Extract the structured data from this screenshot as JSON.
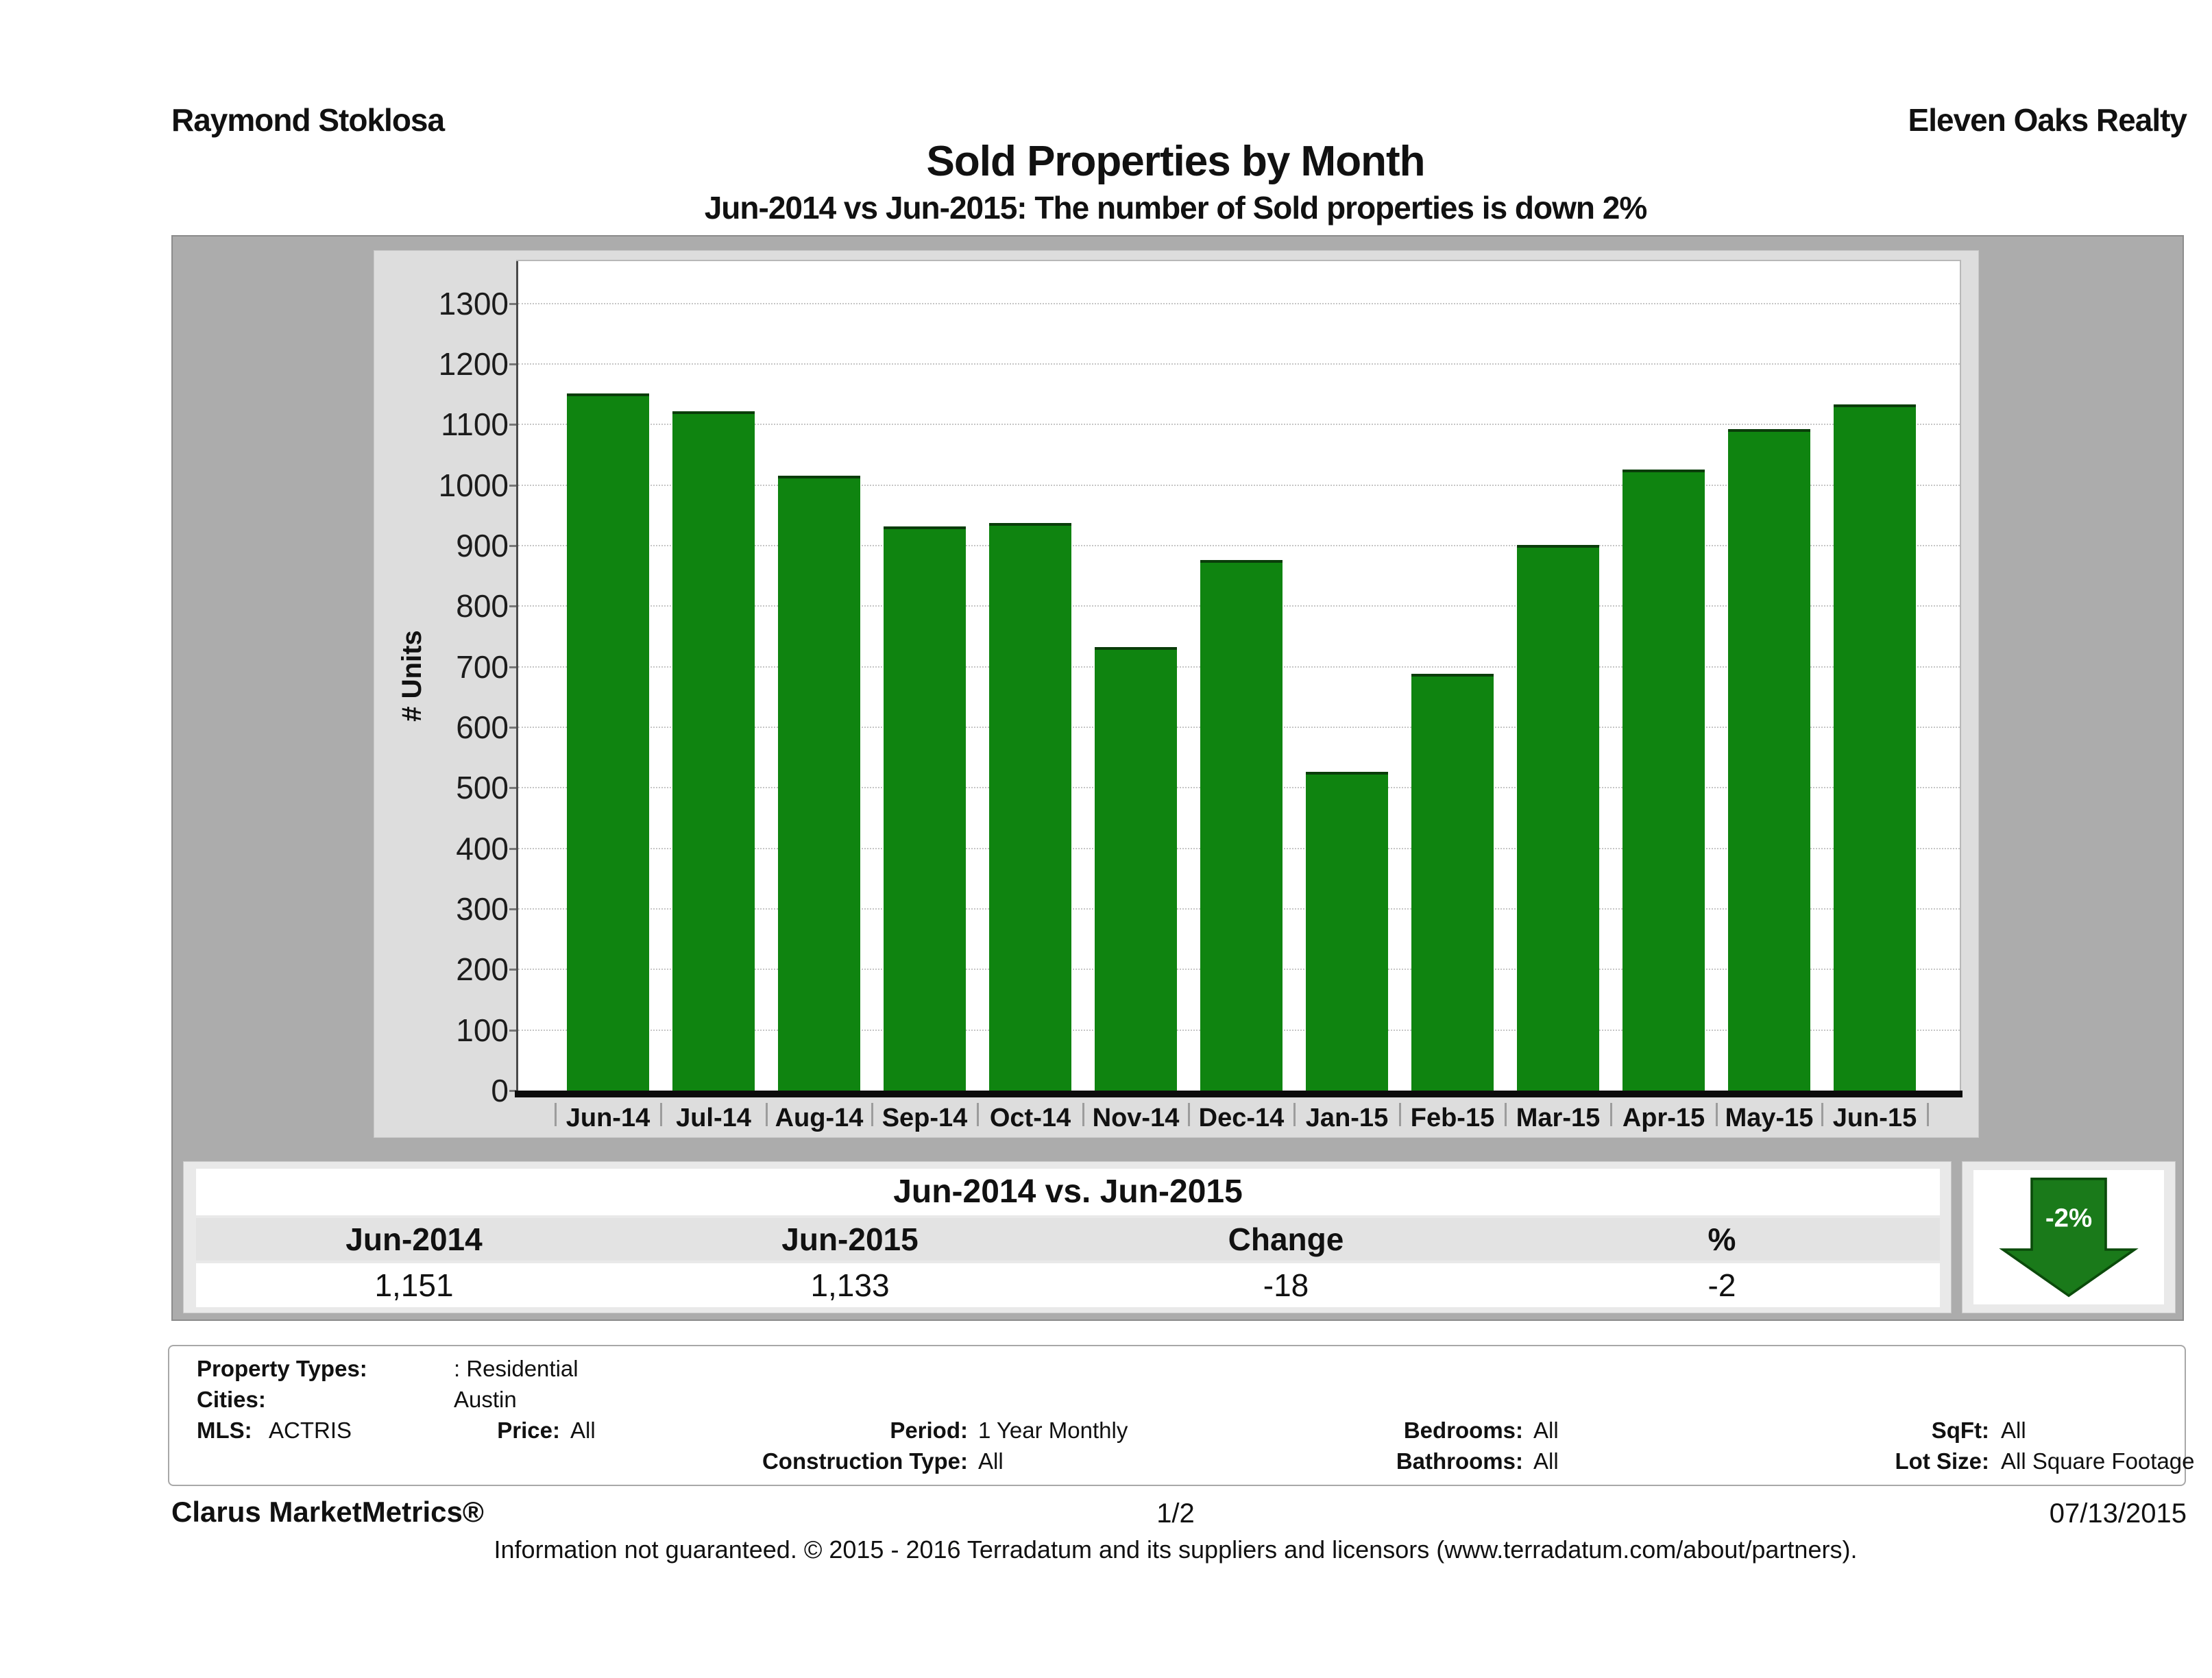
{
  "page": {
    "agent_name": "Raymond Stoklosa",
    "company_name": "Eleven Oaks Realty",
    "title": "Sold Properties by Month",
    "subtitle": "Jun-2014 vs Jun-2015: The number of Sold properties is down 2%"
  },
  "chart_data": {
    "type": "bar",
    "title": "Sold Properties by Month",
    "subtitle": "Jun-2014 vs Jun-2015: The number of Sold properties is down 2%",
    "series_name": "Sold Properties",
    "categories": [
      "Jun-14",
      "Jul-14",
      "Aug-14",
      "Sep-14",
      "Oct-14",
      "Nov-14",
      "Dec-14",
      "Jan-15",
      "Feb-15",
      "Mar-15",
      "Apr-15",
      "May-15",
      "Jun-15"
    ],
    "values": [
      1151,
      1122,
      1016,
      932,
      938,
      733,
      876,
      527,
      688,
      901,
      1026,
      1093,
      1133
    ],
    "xlabel": "",
    "ylabel": "# Units",
    "ylim": [
      0,
      1370
    ],
    "ytick_interval": 100,
    "ytick_max_label": 1300,
    "grid": "horizontal dotted",
    "legend": "none",
    "bar_color": "#0F8410",
    "bar_edge_color": "#0A3D0A"
  },
  "comparison_table": {
    "title": "Jun-2014 vs. Jun-2015",
    "columns": [
      "Jun-2014",
      "Jun-2015",
      "Change",
      "%"
    ],
    "values": [
      "1,151",
      "1,133",
      "-18",
      "-2"
    ]
  },
  "trend_arrow": {
    "label": "-2%",
    "direction": "down",
    "color": "#1A7A1A",
    "edge_color": "#0B4B0B"
  },
  "filters": {
    "rows": [
      [
        {
          "label": "Property Types:",
          "value": ": Residential"
        }
      ],
      [
        {
          "label": "Cities:",
          "value": "Austin"
        }
      ],
      [
        {
          "label": "MLS:",
          "value": "ACTRIS"
        },
        {
          "label": "Price:",
          "value": "All"
        },
        {
          "label": "Period:",
          "value": "1 Year Monthly"
        },
        {
          "label": "Bedrooms:",
          "value": "All"
        },
        {
          "label": "SqFt:",
          "value": "All"
        }
      ],
      [
        {
          "label": "Construction Type:",
          "value": "All"
        },
        {
          "label": "Bathrooms:",
          "value": "All"
        },
        {
          "label": "Lot Size:",
          "value": "All Square Footage"
        }
      ]
    ]
  },
  "footer": {
    "product": "Clarus MarketMetrics®",
    "page_number": "1/2",
    "date": "07/13/2015",
    "disclaimer": "Information not guaranteed. © 2015 - 2016 Terradatum and its suppliers and licensors (www.terradatum.com/about/partners)."
  }
}
